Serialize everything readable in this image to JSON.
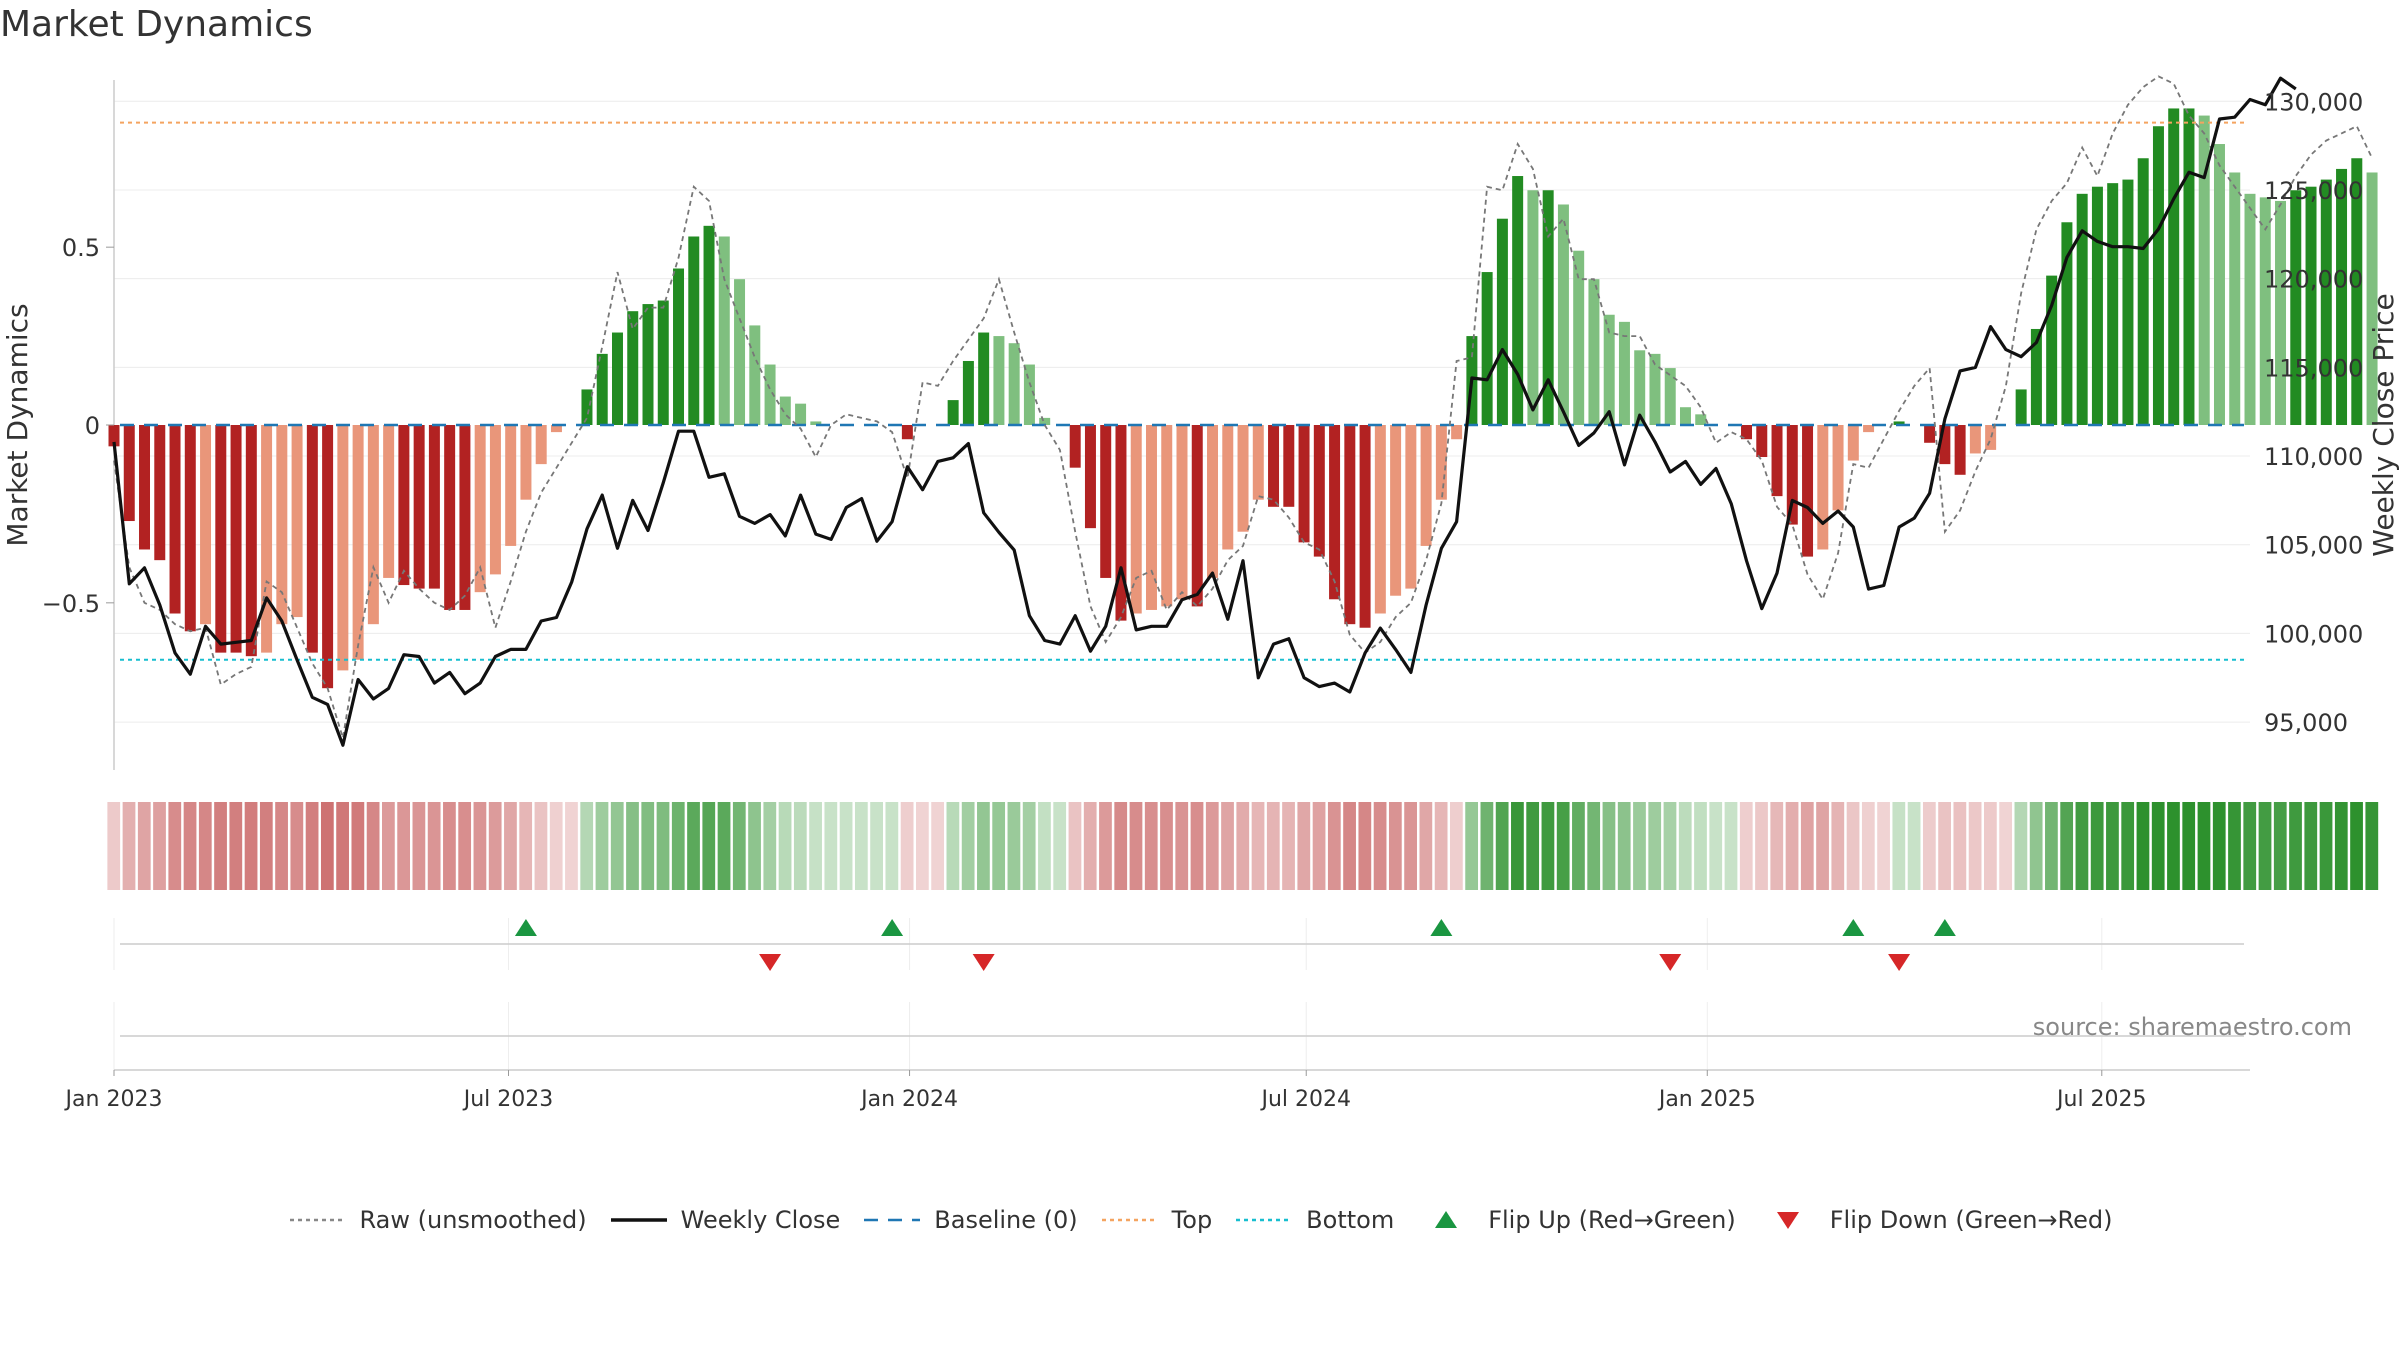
{
  "chart_data": {
    "type": "bar",
    "title": "Market Dynamics",
    "ylabel": "Market Dynamics",
    "y2label": "Weekly Close Price",
    "ylim": [
      -0.97,
      0.97
    ],
    "y2lim": [
      92300,
      131200
    ],
    "yticks": [
      -0.5,
      0,
      0.5
    ],
    "ytick_labels": [
      "−0.5",
      "0",
      "0.5"
    ],
    "y2ticks": [
      95000,
      100000,
      105000,
      110000,
      115000,
      120000,
      125000,
      130000
    ],
    "y2tick_labels": [
      "95,000",
      "100,000",
      "105,000",
      "110,000",
      "115,000",
      "120,000",
      "125,000",
      "130,000"
    ],
    "x_start": "2023-01-01",
    "x_end": "2025-09-07",
    "xticks": [
      "2023-01-01",
      "2023-07-01",
      "2024-01-01",
      "2024-07-01",
      "2025-01-01",
      "2025-07-01"
    ],
    "xtick_labels": [
      "Jan 2023",
      "Jul 2023",
      "Jan 2024",
      "Jul 2024",
      "Jan 2025",
      "Jul 2025"
    ],
    "top_level": 0.85,
    "bottom_level": -0.66,
    "grid": true,
    "legend_position": "bottom-center",
    "source_note": "source: sharemaestro.com",
    "colors": {
      "bull_strong": "#228b22",
      "bull_weak": "#7fbf7f",
      "bear_strong": "#b22222",
      "bear_weak": "#e9967a",
      "raw": "#777777",
      "close": "#111111",
      "baseline": "#1f77b4",
      "top": "#f4a460",
      "bottom": "#17becf",
      "flip_up": "#1a9641",
      "flip_down": "#d62728"
    },
    "series": [
      {
        "name": "Market Dynamics",
        "start_date": "2023-01-01",
        "step_days": 7,
        "values": [
          -0.06,
          -0.27,
          -0.35,
          -0.38,
          -0.53,
          -0.58,
          -0.56,
          -0.64,
          -0.64,
          -0.65,
          -0.64,
          -0.56,
          -0.54,
          -0.64,
          -0.74,
          -0.69,
          -0.66,
          -0.56,
          -0.43,
          -0.45,
          -0.46,
          -0.46,
          -0.52,
          -0.52,
          -0.47,
          -0.42,
          -0.34,
          -0.21,
          -0.11,
          -0.02,
          0.0,
          0.1,
          0.2,
          0.26,
          0.32,
          0.34,
          0.35,
          0.44,
          0.53,
          0.56,
          0.53,
          0.41,
          0.28,
          0.17,
          0.08,
          0.06,
          0.01,
          0.0,
          0.0,
          0.0,
          0.0,
          0.0,
          -0.04,
          0.0,
          0.0,
          0.07,
          0.18,
          0.26,
          0.25,
          0.23,
          0.17,
          0.02,
          0.0,
          -0.12,
          -0.29,
          -0.43,
          -0.55,
          -0.53,
          -0.52,
          -0.51,
          -0.49,
          -0.51,
          -0.43,
          -0.35,
          -0.3,
          -0.21,
          -0.23,
          -0.23,
          -0.33,
          -0.37,
          -0.49,
          -0.56,
          -0.57,
          -0.53,
          -0.48,
          -0.46,
          -0.34,
          -0.21,
          -0.04,
          0.25,
          0.43,
          0.58,
          0.7,
          0.66,
          0.66,
          0.62,
          0.49,
          0.41,
          0.31,
          0.29,
          0.21,
          0.2,
          0.16,
          0.05,
          0.03,
          0.0,
          0.0,
          -0.04,
          -0.09,
          -0.2,
          -0.28,
          -0.37,
          -0.35,
          -0.24,
          -0.1,
          -0.02,
          0.0,
          0.01,
          0.0,
          -0.05,
          -0.11,
          -0.14,
          -0.08,
          -0.07,
          0.0,
          0.1,
          0.27,
          0.42,
          0.57,
          0.65,
          0.67,
          0.68,
          0.69,
          0.75,
          0.84,
          0.89,
          0.89,
          0.87,
          0.79,
          0.71,
          0.65,
          0.64,
          0.63,
          0.66,
          0.67,
          0.69,
          0.72,
          0.75,
          0.71
        ]
      },
      {
        "name": "Raw (unsmoothed)",
        "start_date": "2023-01-01",
        "step_days": 7,
        "values": [
          -0.1,
          -0.4,
          -0.5,
          -0.52,
          -0.56,
          -0.58,
          -0.57,
          -0.73,
          -0.7,
          -0.68,
          -0.44,
          -0.47,
          -0.57,
          -0.67,
          -0.74,
          -0.88,
          -0.62,
          -0.4,
          -0.5,
          -0.41,
          -0.46,
          -0.5,
          -0.52,
          -0.48,
          -0.4,
          -0.57,
          -0.44,
          -0.3,
          -0.19,
          -0.12,
          -0.05,
          0.02,
          0.22,
          0.43,
          0.27,
          0.33,
          0.33,
          0.47,
          0.67,
          0.63,
          0.41,
          0.3,
          0.19,
          0.1,
          0.03,
          -0.01,
          -0.09,
          0.0,
          0.03,
          0.02,
          0.01,
          -0.02,
          -0.15,
          0.12,
          0.11,
          0.18,
          0.24,
          0.3,
          0.41,
          0.26,
          0.12,
          0.0,
          -0.07,
          -0.3,
          -0.51,
          -0.61,
          -0.54,
          -0.43,
          -0.41,
          -0.52,
          -0.47,
          -0.51,
          -0.46,
          -0.38,
          -0.34,
          -0.2,
          -0.21,
          -0.26,
          -0.33,
          -0.35,
          -0.44,
          -0.59,
          -0.64,
          -0.61,
          -0.54,
          -0.5,
          -0.38,
          -0.22,
          0.18,
          0.19,
          0.67,
          0.66,
          0.79,
          0.72,
          0.53,
          0.58,
          0.41,
          0.41,
          0.26,
          0.25,
          0.25,
          0.17,
          0.14,
          0.11,
          0.05,
          -0.05,
          -0.02,
          -0.04,
          -0.1,
          -0.23,
          -0.28,
          -0.42,
          -0.49,
          -0.36,
          -0.11,
          -0.12,
          -0.04,
          0.04,
          0.11,
          0.16,
          -0.3,
          -0.24,
          -0.13,
          -0.04,
          0.11,
          0.37,
          0.55,
          0.63,
          0.68,
          0.78,
          0.7,
          0.82,
          0.9,
          0.95,
          0.98,
          0.96,
          0.87,
          0.82,
          0.73,
          0.67,
          0.61,
          0.55,
          0.62,
          0.7,
          0.76,
          0.8,
          0.82,
          0.84,
          0.75
        ]
      },
      {
        "name": "Weekly Close",
        "start_date": "2023-01-01",
        "step_days": 7,
        "values": [
          110800,
          102800,
          103700,
          101600,
          98900,
          97700,
          100400,
          99400,
          99500,
          99600,
          102000,
          100700,
          98500,
          96400,
          96000,
          93700,
          97400,
          96300,
          96900,
          98800,
          98700,
          97200,
          97800,
          96600,
          97200,
          98700,
          99100,
          99100,
          100700,
          100900,
          102900,
          105900,
          107800,
          104800,
          107500,
          105800,
          108500,
          111400,
          111400,
          108800,
          109000,
          106600,
          106200,
          106700,
          105500,
          107800,
          105600,
          105300,
          107100,
          107600,
          105200,
          106300,
          109400,
          108100,
          109700,
          109900,
          110700,
          106800,
          105700,
          104700,
          101000,
          99600,
          99400,
          101000,
          99000,
          100400,
          103700,
          100200,
          100400,
          100400,
          101900,
          102200,
          103400,
          100800,
          104100,
          97500,
          99400,
          99700,
          97500,
          97000,
          97200,
          96700,
          98900,
          100300,
          99100,
          97800,
          101600,
          104800,
          106300,
          114400,
          114300,
          116000,
          114600,
          112600,
          114300,
          112500,
          110600,
          111300,
          112500,
          109500,
          112300,
          110800,
          109100,
          109700,
          108400,
          109300,
          107300,
          104100,
          101400,
          103400,
          107500,
          107100,
          106200,
          106900,
          106000,
          102500,
          102700,
          106000,
          106500,
          107900,
          112100,
          114800,
          115000,
          117300,
          116000,
          115600,
          116400,
          118500,
          121200,
          122700,
          122100,
          121800,
          121800,
          121700,
          122800,
          124500,
          126000,
          125700,
          129000,
          129100,
          130100,
          129800,
          131300,
          130700
        ]
      }
    ],
    "timeline_states": {
      "start_date": "2023-01-01",
      "step_days": 7,
      "values": [
        -0.06,
        -0.27,
        -0.35,
        -0.38,
        -0.53,
        -0.58,
        -0.56,
        -0.64,
        -0.64,
        -0.65,
        -0.64,
        -0.56,
        -0.54,
        -0.64,
        -0.74,
        -0.69,
        -0.66,
        -0.56,
        -0.43,
        -0.45,
        -0.46,
        -0.46,
        -0.52,
        -0.52,
        -0.47,
        -0.42,
        -0.34,
        -0.21,
        -0.11,
        -0.02,
        0.0,
        0.1,
        0.2,
        0.26,
        0.32,
        0.34,
        0.35,
        0.44,
        0.53,
        0.56,
        0.53,
        0.41,
        0.28,
        0.17,
        0.08,
        0.06,
        0.01,
        0.0,
        0.0,
        0.0,
        0.0,
        0.0,
        -0.04,
        0.0,
        0.0,
        0.07,
        0.18,
        0.26,
        0.25,
        0.23,
        0.17,
        0.02,
        0.0,
        -0.12,
        -0.29,
        -0.43,
        -0.55,
        -0.53,
        -0.52,
        -0.51,
        -0.49,
        -0.51,
        -0.43,
        -0.35,
        -0.3,
        -0.21,
        -0.23,
        -0.23,
        -0.33,
        -0.37,
        -0.49,
        -0.56,
        -0.57,
        -0.53,
        -0.48,
        -0.46,
        -0.34,
        -0.21,
        -0.04,
        0.25,
        0.43,
        0.58,
        0.7,
        0.66,
        0.66,
        0.62,
        0.49,
        0.41,
        0.31,
        0.29,
        0.21,
        0.2,
        0.16,
        0.05,
        0.03,
        0.0,
        0.0,
        -0.04,
        -0.09,
        -0.2,
        -0.28,
        -0.37,
        -0.35,
        -0.24,
        -0.1,
        -0.02,
        0.0,
        0.01,
        0.0,
        -0.05,
        -0.11,
        -0.14,
        -0.08,
        -0.07,
        0.0,
        0.1,
        0.27,
        0.42,
        0.57,
        0.65,
        0.67,
        0.68,
        0.69,
        0.75,
        0.84,
        0.89,
        0.89,
        0.87,
        0.79,
        0.71,
        0.65,
        0.64,
        0.63,
        0.66,
        0.67,
        0.69,
        0.72,
        0.75,
        0.71
      ]
    },
    "flips": {
      "up": [
        "2023-07-09",
        "2023-12-24",
        "2024-09-01",
        "2025-03-09",
        "2025-04-20"
      ],
      "down": [
        "2023-10-29",
        "2024-02-04",
        "2024-12-15",
        "2025-03-30"
      ]
    },
    "legend": [
      {
        "label": "Raw (unsmoothed)",
        "kind": "dotted",
        "color": "#888888"
      },
      {
        "label": "Weekly Close",
        "kind": "solid",
        "color": "#111111"
      },
      {
        "label": "Baseline (0)",
        "kind": "dashed",
        "color": "#1f77b4"
      },
      {
        "label": "Top",
        "kind": "dotted",
        "color": "#f4a460"
      },
      {
        "label": "Bottom",
        "kind": "dotted",
        "color": "#17becf"
      },
      {
        "label": "Flip Up (Red→Green)",
        "kind": "tri-up",
        "color": "#1a9641"
      },
      {
        "label": "Flip Down (Green→Red)",
        "kind": "tri-down",
        "color": "#d62728"
      }
    ]
  }
}
